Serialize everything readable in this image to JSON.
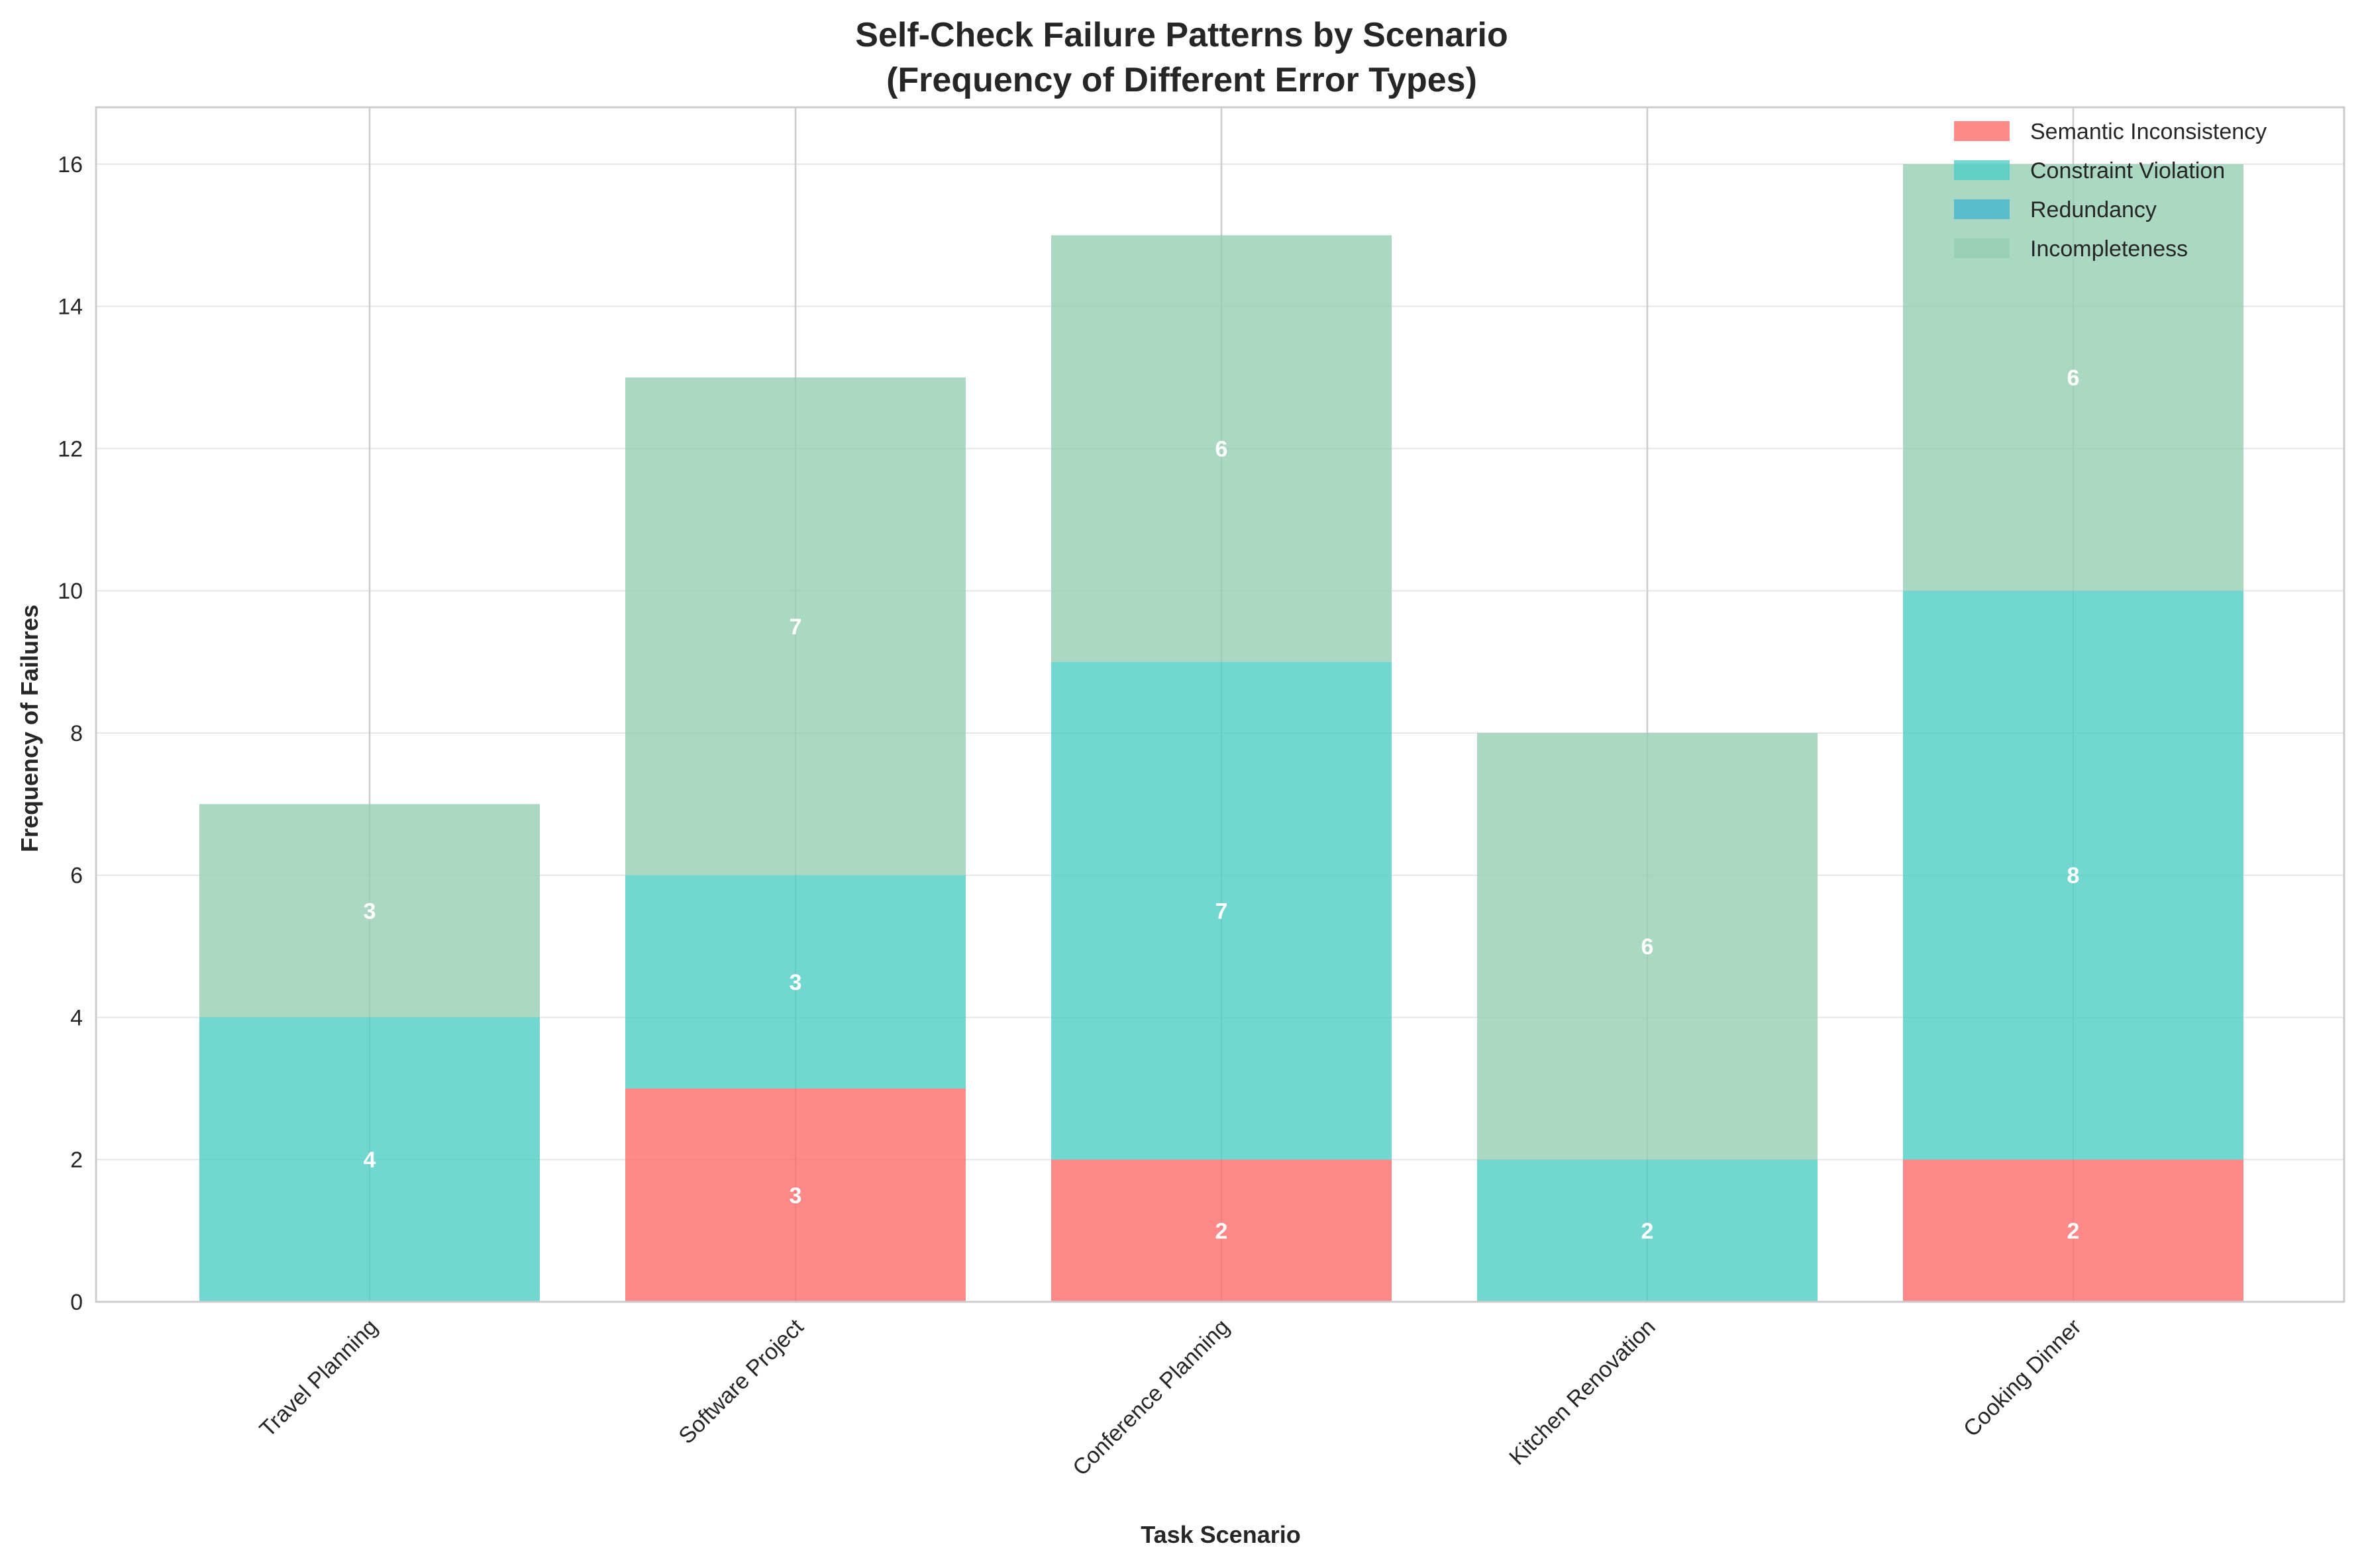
{
  "chart_data": {
    "type": "bar",
    "stacked": true,
    "title": "Self-Check Failure Patterns by Scenario",
    "subtitle": "(Frequency of Different Error Types)",
    "xlabel": "Task Scenario",
    "ylabel": "Frequency of Failures",
    "categories": [
      "Travel Planning",
      "Software Project",
      "Conference Planning",
      "Kitchen Renovation",
      "Cooking Dinner"
    ],
    "series": [
      {
        "name": "Semantic Inconsistency",
        "values": [
          0,
          3,
          2,
          0,
          2
        ],
        "color": "#ff6b6b"
      },
      {
        "name": "Constraint Violation",
        "values": [
          4,
          3,
          7,
          2,
          8
        ],
        "color": "#4ecdc4"
      },
      {
        "name": "Redundancy",
        "values": [
          0,
          0,
          0,
          0,
          0
        ],
        "color": "#45b7d1"
      },
      {
        "name": "Incompleteness",
        "values": [
          3,
          7,
          6,
          6,
          6
        ],
        "color": "#96ceb4"
      }
    ],
    "ylim": [
      0,
      16.8
    ],
    "yticks": [
      0,
      2,
      4,
      6,
      8,
      10,
      12,
      14,
      16
    ],
    "grid": true,
    "legend_position": "top-right"
  }
}
